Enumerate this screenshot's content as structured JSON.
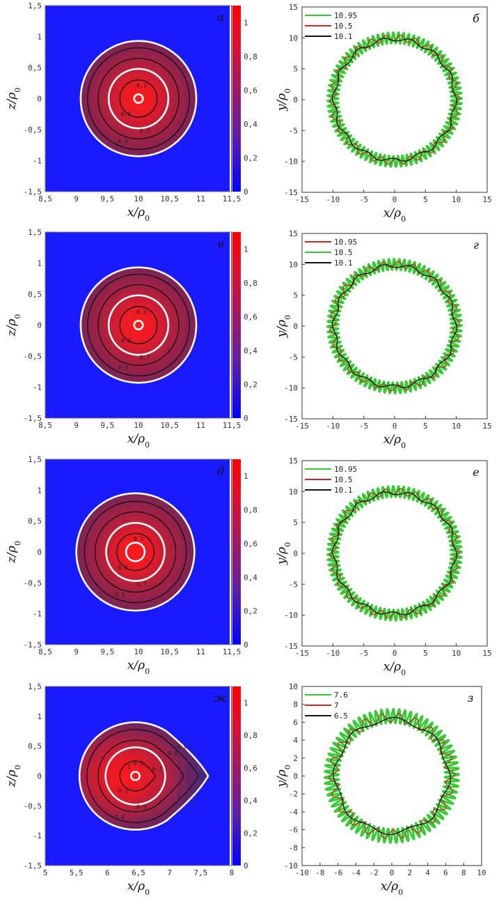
{
  "chart_data": [
    {
      "panel": "а",
      "type": "heatmap",
      "xlabel": "x/ρ0",
      "ylabel": "z/ρ0",
      "xlim": [
        8.5,
        11.5
      ],
      "ylim": [
        -1.5,
        1.5
      ],
      "xticks": [
        "8,5",
        "9",
        "9,5",
        "10",
        "10,5",
        "11",
        "11,5"
      ],
      "yticks": [
        "1,5",
        "1",
        "0,5",
        "0",
        "-0,5",
        "-1",
        "-1,5"
      ],
      "colorbar": {
        "range": [
          0,
          1.1
        ],
        "ticks": [
          "1",
          "0,8",
          "0,6",
          "0,4",
          "0,2",
          "0"
        ]
      },
      "center": [
        10,
        0
      ],
      "radius": 0.93,
      "white_contours": [
        0.93,
        0.48,
        0.07
      ],
      "black_contours": [
        0.82,
        0.65,
        0.3
      ],
      "contour_labels": [
        "0.3",
        "0.5",
        "0.7",
        "0.9"
      ]
    },
    {
      "panel": "б",
      "type": "line",
      "xlabel": "x/ρ0",
      "ylabel": "y/ρ0",
      "xlim": [
        -15,
        15
      ],
      "ylim": [
        -15,
        15
      ],
      "xticks": [
        "-15",
        "-10",
        "-5",
        "0",
        "5",
        "10",
        "15"
      ],
      "yticks": [
        "15",
        "10",
        "5",
        "0",
        "-5",
        "-10",
        "-15"
      ],
      "series": [
        {
          "name": "10.95",
          "color": "#33cc33",
          "radius": 10,
          "amp": 0.9,
          "waves": 80
        },
        {
          "name": "10.5",
          "color": "#cc2a1e",
          "radius": 10,
          "amp": 0.5,
          "waves": 26
        },
        {
          "name": "10.1",
          "color": "#111111",
          "radius": 9.8,
          "amp": 0.3,
          "waves": 14
        }
      ]
    },
    {
      "panel": "в",
      "type": "heatmap",
      "xlabel": "x/ρ0",
      "ylabel": "z/ρ0",
      "xlim": [
        8.5,
        11.5
      ],
      "ylim": [
        -1.5,
        1.5
      ],
      "xticks": [
        "8,5",
        "9",
        "9,5",
        "10",
        "10,5",
        "11",
        "11,5"
      ],
      "yticks": [
        "1,5",
        "1",
        "0,5",
        "0",
        "-0,5",
        "-1",
        "-1,5"
      ],
      "colorbar": {
        "range": [
          0,
          1.1
        ],
        "ticks": [
          "1",
          "0,8",
          "0,6",
          "0,4",
          "0,2",
          "0"
        ]
      },
      "center": [
        10,
        0
      ],
      "radius": 0.93,
      "white_contours": [
        0.93,
        0.48,
        0.07
      ],
      "black_contours": [
        0.82,
        0.65,
        0.3
      ],
      "contour_labels": [
        "0.3",
        "0.5",
        "0.7",
        "0.9"
      ]
    },
    {
      "panel": "г",
      "type": "line",
      "xlabel": "x/ρ0",
      "ylabel": "y/ρ0",
      "xlim": [
        -15,
        15
      ],
      "ylim": [
        -15,
        15
      ],
      "xticks": [
        "-15",
        "-10",
        "-5",
        "0",
        "5",
        "10",
        "15"
      ],
      "yticks": [
        "15",
        "10",
        "5",
        "0",
        "-5",
        "-10",
        "-15"
      ],
      "series": [
        {
          "name": "10.95",
          "color": "#cc2a1e",
          "radius": 10,
          "amp": 0.5,
          "waves": 26
        },
        {
          "name": "10.5",
          "color": "#33cc33",
          "radius": 10,
          "amp": 0.9,
          "waves": 80
        },
        {
          "name": "10.1",
          "color": "#111111",
          "radius": 9.8,
          "amp": 0.3,
          "waves": 14
        }
      ]
    },
    {
      "panel": "д",
      "type": "heatmap",
      "xlabel": "x/ρ0",
      "ylabel": "z/ρ0",
      "xlim": [
        8.5,
        11.5
      ],
      "ylim": [
        -1.5,
        1.5
      ],
      "xticks": [
        "8,5",
        "9",
        "9,5",
        "10",
        "10,5",
        "11",
        "11,5"
      ],
      "yticks": [
        "1,5",
        "1",
        "0,5",
        "0",
        "-0,5",
        "-1",
        "-1,5"
      ],
      "colorbar": {
        "range": [
          0,
          1.1
        ],
        "ticks": [
          "1",
          "0,8",
          "0,6",
          "0,4",
          "0,2",
          "0"
        ]
      },
      "center": [
        9.95,
        0
      ],
      "radius": 0.95,
      "white_contours": [
        0.95,
        0.47,
        0.15
      ],
      "black_contours": [
        0.82,
        0.65,
        0.3
      ],
      "contour_labels": [
        "0.3",
        "0.5",
        "0.7",
        "0.9"
      ]
    },
    {
      "panel": "е",
      "type": "line",
      "xlabel": "x/ρ0",
      "ylabel": "y/ρ0",
      "xlim": [
        -15,
        15
      ],
      "ylim": [
        -15,
        15
      ],
      "xticks": [
        "-15",
        "-10",
        "-5",
        "0",
        "5",
        "10",
        "15"
      ],
      "yticks": [
        "15",
        "10",
        "5",
        "0",
        "-5",
        "-10",
        "-15"
      ],
      "series": [
        {
          "name": "10.95",
          "color": "#33cc33",
          "radius": 10,
          "amp": 0.9,
          "waves": 80
        },
        {
          "name": "10.5",
          "color": "#cc2a1e",
          "radius": 10,
          "amp": 0.5,
          "waves": 26
        },
        {
          "name": "10.1",
          "color": "#111111",
          "radius": 9.8,
          "amp": 0.3,
          "waves": 14
        }
      ]
    },
    {
      "panel": "ж",
      "type": "heatmap",
      "xlabel": "x/ρ0",
      "ylabel": "z/ρ0",
      "xlim": [
        5,
        8
      ],
      "ylim": [
        -1.5,
        1.5
      ],
      "xticks": [
        "5",
        "5,5",
        "6",
        "6,5",
        "7",
        "7,5",
        "8"
      ],
      "yticks": [
        "1,5",
        "1",
        "0,5",
        "0",
        "-0,5",
        "-1",
        "-1,5"
      ],
      "colorbar": {
        "range": [
          0,
          1.1
        ],
        "ticks": [
          "1",
          "0,8",
          "0,6",
          "0,4",
          "0,2",
          "0"
        ]
      },
      "center": [
        6.45,
        0
      ],
      "radius": 0.9,
      "tip_x": 7.62,
      "white_contours": [
        0.9,
        0.48,
        0.07
      ],
      "black_contours": [
        0.78,
        0.6,
        0.25
      ],
      "contour_labels": [
        "0.1",
        "0.3",
        "0.5",
        "0.6",
        "0.7",
        "0.8",
        "0.9",
        "1"
      ]
    },
    {
      "panel": "з",
      "type": "line",
      "xlabel": "x/ρ0",
      "ylabel": "y/ρ0",
      "xlim": [
        -10,
        10
      ],
      "ylim": [
        -10,
        10
      ],
      "xticks": [
        "-10",
        "-8",
        "-6",
        "-4",
        "-2",
        "0",
        "2",
        "4",
        "6",
        "8",
        "10"
      ],
      "yticks": [
        "10",
        "8",
        "6",
        "4",
        "2",
        "0",
        "-2",
        "-4",
        "-6",
        "-8",
        "-10"
      ],
      "series": [
        {
          "name": "7.6",
          "color": "#33cc33",
          "radius": 6.7,
          "amp": 0.8,
          "waves": 70
        },
        {
          "name": "7",
          "color": "#cc2a1e",
          "radius": 6.5,
          "amp": 0.5,
          "waves": 22
        },
        {
          "name": "6.5",
          "color": "#111111",
          "radius": 6.3,
          "amp": 0.25,
          "waves": 8
        }
      ]
    }
  ]
}
